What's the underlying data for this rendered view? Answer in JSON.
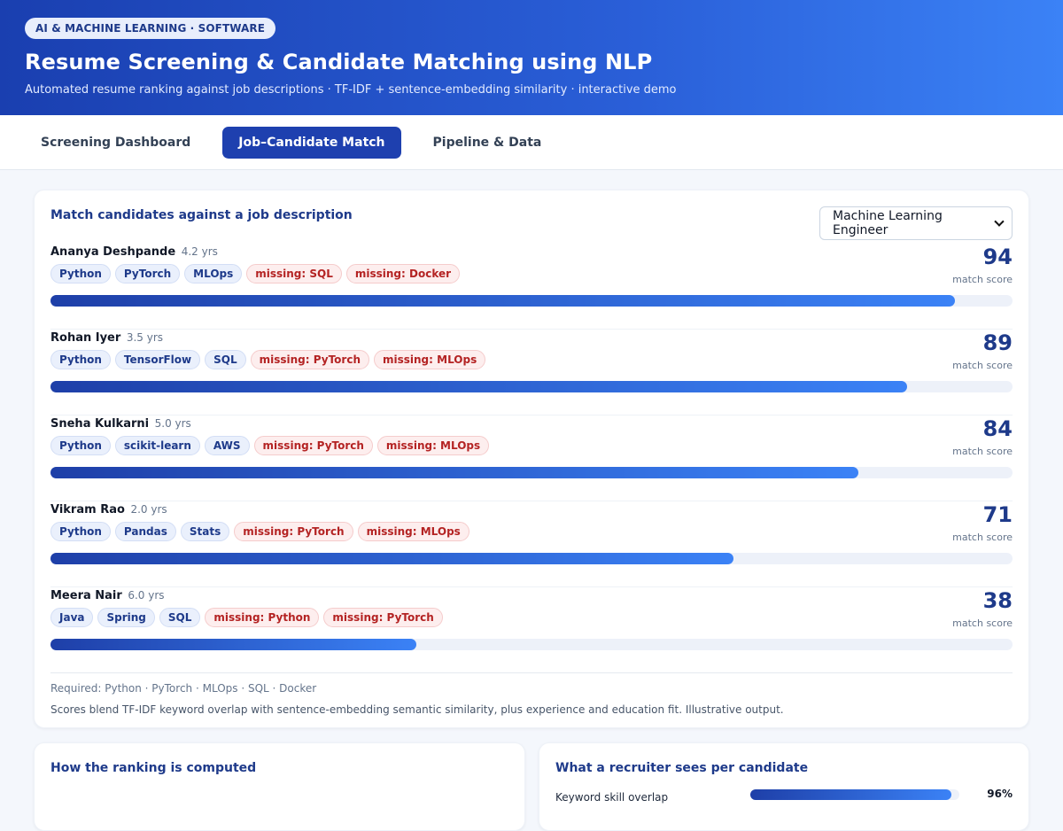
{
  "header": {
    "badge": "AI & MACHINE LEARNING · SOFTWARE",
    "title": "Resume Screening & Candidate Matching using NLP",
    "subtitle": "Automated resume ranking against job descriptions · TF-IDF + sentence-embedding similarity · interactive demo"
  },
  "tabs": [
    {
      "label": "Screening Dashboard",
      "active": false
    },
    {
      "label": "Job–Candidate Match",
      "active": true
    },
    {
      "label": "Pipeline & Data",
      "active": false
    }
  ],
  "match": {
    "title": "Match candidates against a job description",
    "role_select": "Machine Learning Engineer",
    "score_label": "match score",
    "candidates": [
      {
        "name": "Ananya Deshpande",
        "years": "4.2 yrs",
        "skills": [
          "Python",
          "PyTorch",
          "MLOps"
        ],
        "missing": [
          "missing: SQL",
          "missing: Docker"
        ],
        "score": 94
      },
      {
        "name": "Rohan Iyer",
        "years": "3.5 yrs",
        "skills": [
          "Python",
          "TensorFlow",
          "SQL"
        ],
        "missing": [
          "missing: PyTorch",
          "missing: MLOps"
        ],
        "score": 89
      },
      {
        "name": "Sneha Kulkarni",
        "years": "5.0 yrs",
        "skills": [
          "Python",
          "scikit-learn",
          "AWS"
        ],
        "missing": [
          "missing: PyTorch",
          "missing: MLOps"
        ],
        "score": 84
      },
      {
        "name": "Vikram Rao",
        "years": "2.0 yrs",
        "skills": [
          "Python",
          "Pandas",
          "Stats"
        ],
        "missing": [
          "missing: PyTorch",
          "missing: MLOps"
        ],
        "score": 71
      },
      {
        "name": "Meera Nair",
        "years": "6.0 yrs",
        "skills": [
          "Java",
          "Spring",
          "SQL"
        ],
        "missing": [
          "missing: Python",
          "missing: PyTorch"
        ],
        "score": 38
      }
    ],
    "required": "Required: Python · PyTorch · MLOps · SQL · Docker",
    "note": "Scores blend TF-IDF keyword overlap with sentence-embedding semantic similarity, plus experience and education fit. Illustrative output."
  },
  "ranking": {
    "title": "How the ranking is computed"
  },
  "recruiter": {
    "title": "What a recruiter sees per candidate",
    "rows": [
      {
        "label": "Keyword skill overlap",
        "value": "96%",
        "fraction": 0.96
      }
    ]
  },
  "colors": {
    "accent": "#1e40af",
    "missing": "#b42323"
  }
}
